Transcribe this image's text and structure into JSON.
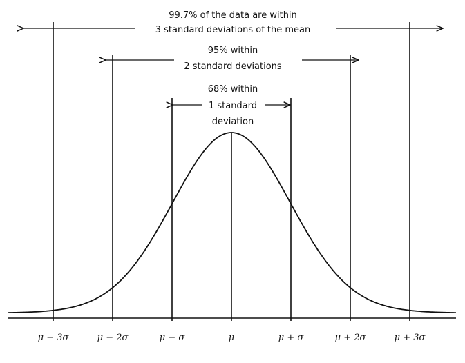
{
  "annotations": {
    "three_sigma": {
      "line1": "99.7% of the data are within",
      "line2": "3 standard deviations of the mean"
    },
    "two_sigma": {
      "line1": "95% within",
      "line2": "2 standard deviations"
    },
    "one_sigma": {
      "line1": "68% within",
      "line2": "1 standard",
      "line3": "deviation"
    }
  },
  "axis": {
    "ticks": [
      {
        "value": -3,
        "label": "μ − 3σ"
      },
      {
        "value": -2,
        "label": "μ − 2σ"
      },
      {
        "value": -1,
        "label": "μ − σ"
      },
      {
        "value": 0,
        "label": "μ"
      },
      {
        "value": 1,
        "label": "μ + σ"
      },
      {
        "value": 2,
        "label": "μ + 2σ"
      },
      {
        "value": 3,
        "label": "μ + 3σ"
      }
    ]
  },
  "colors": {
    "ink": "#111111",
    "background": "#ffffff"
  }
}
